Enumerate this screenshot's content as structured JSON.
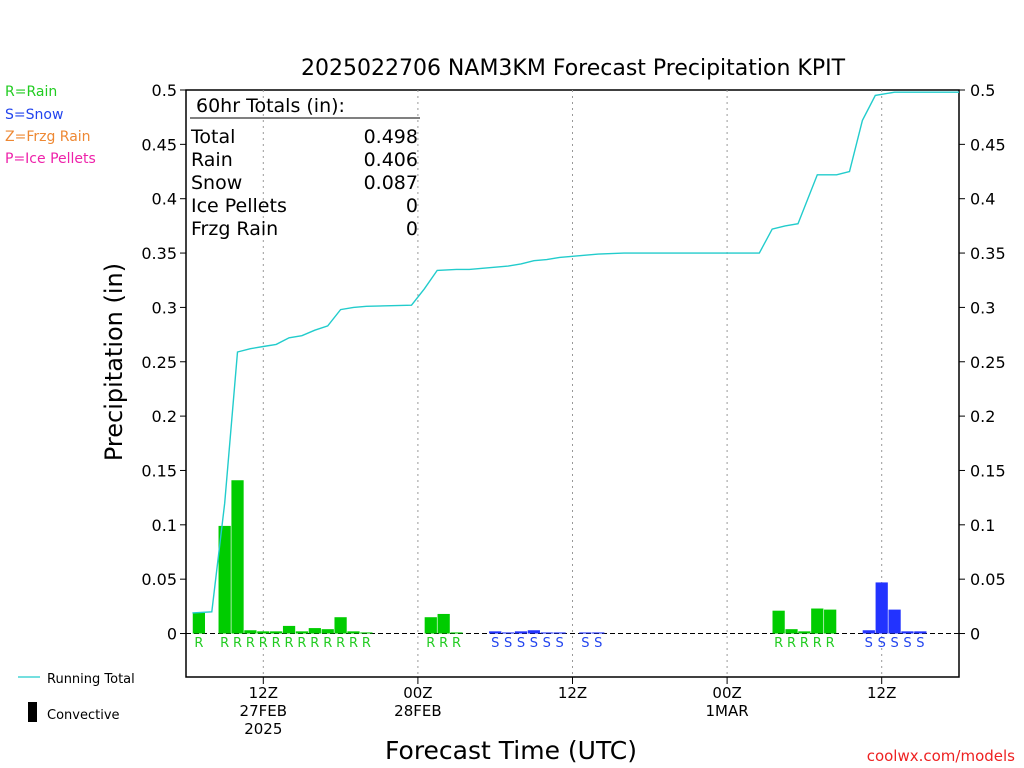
{
  "legend_types": [
    {
      "label": "R=Rain",
      "color": "#22cc22"
    },
    {
      "label": "S=Snow",
      "color": "#2244ee"
    },
    {
      "label": "Z=Frzg Rain",
      "color": "#ee8833"
    },
    {
      "label": "P=Ice Pellets",
      "color": "#ee22aa"
    }
  ],
  "legend_bottom": {
    "running_total": "Running Total",
    "convective": "Convective",
    "running_total_color": "#22cccc"
  },
  "totals_box": {
    "title": "60hr Totals (in):",
    "rows": [
      {
        "label": "Total",
        "value": "0.498"
      },
      {
        "label": "Rain",
        "value": "0.406"
      },
      {
        "label": "Snow",
        "value": "0.087"
      },
      {
        "label": "Ice Pellets",
        "value": "0"
      },
      {
        "label": "Frzg Rain",
        "value": "0"
      }
    ]
  },
  "credit": "coolwx.com/models",
  "chart_data": {
    "type": "bar",
    "title": "2025022706 NAM3KM Forecast Precipitation KPIT",
    "xlabel": "Forecast Time (UTC)",
    "ylabel": "Precipitation (in)",
    "ylim": [
      -0.04,
      0.5
    ],
    "yticks": [
      "0",
      "0.05",
      "0.1",
      "0.15",
      "0.2",
      "0.25",
      "0.3",
      "0.35",
      "0.4",
      "0.45",
      "0.5"
    ],
    "ytick_values": [
      0,
      0.05,
      0.1,
      0.15,
      0.2,
      0.25,
      0.3,
      0.35,
      0.4,
      0.45,
      0.5
    ],
    "x_range_hours": [
      0,
      60
    ],
    "x_major_ticks": [
      {
        "hour": 6,
        "lines": [
          "12Z",
          "27FEB",
          "2025"
        ]
      },
      {
        "hour": 18,
        "lines": [
          "00Z",
          "28FEB"
        ]
      },
      {
        "hour": 30,
        "lines": [
          "12Z"
        ]
      },
      {
        "hour": 42,
        "lines": [
          "00Z",
          "1MAR"
        ]
      },
      {
        "hour": 54,
        "lines": [
          "12Z"
        ]
      }
    ],
    "bars": [
      {
        "hour": 1,
        "value": 0.019,
        "type": "R"
      },
      {
        "hour": 3,
        "value": 0.099,
        "type": "R"
      },
      {
        "hour": 4,
        "value": 0.141,
        "type": "R"
      },
      {
        "hour": 5,
        "value": 0.003,
        "type": "R"
      },
      {
        "hour": 6,
        "value": 0.002,
        "type": "R"
      },
      {
        "hour": 7,
        "value": 0.002,
        "type": "R"
      },
      {
        "hour": 8,
        "value": 0.007,
        "type": "R"
      },
      {
        "hour": 9,
        "value": 0.002,
        "type": "R"
      },
      {
        "hour": 10,
        "value": 0.005,
        "type": "R"
      },
      {
        "hour": 11,
        "value": 0.004,
        "type": "R"
      },
      {
        "hour": 12,
        "value": 0.015,
        "type": "R"
      },
      {
        "hour": 13,
        "value": 0.002,
        "type": "R"
      },
      {
        "hour": 14,
        "value": 0.001,
        "type": "R"
      },
      {
        "hour": 19,
        "value": 0.015,
        "type": "R"
      },
      {
        "hour": 20,
        "value": 0.018,
        "type": "R"
      },
      {
        "hour": 21,
        "value": 0.001,
        "type": "R"
      },
      {
        "hour": 24,
        "value": 0.002,
        "type": "S"
      },
      {
        "hour": 25,
        "value": 0.001,
        "type": "S"
      },
      {
        "hour": 26,
        "value": 0.002,
        "type": "S"
      },
      {
        "hour": 27,
        "value": 0.003,
        "type": "S"
      },
      {
        "hour": 28,
        "value": 0.001,
        "type": "S"
      },
      {
        "hour": 29,
        "value": 0.001,
        "type": "S"
      },
      {
        "hour": 31,
        "value": 0.001,
        "type": "S"
      },
      {
        "hour": 32,
        "value": 0.001,
        "type": "S"
      },
      {
        "hour": 46,
        "value": 0.021,
        "type": "R"
      },
      {
        "hour": 47,
        "value": 0.004,
        "type": "R"
      },
      {
        "hour": 48,
        "value": 0.002,
        "type": "R"
      },
      {
        "hour": 49,
        "value": 0.023,
        "type": "R"
      },
      {
        "hour": 50,
        "value": 0.022,
        "type": "R"
      },
      {
        "hour": 53,
        "value": 0.003,
        "type": "S"
      },
      {
        "hour": 54,
        "value": 0.047,
        "type": "S"
      },
      {
        "hour": 55,
        "value": 0.022,
        "type": "S"
      },
      {
        "hour": 56,
        "value": 0.002,
        "type": "S"
      },
      {
        "hour": 57,
        "value": 0.002,
        "type": "S"
      }
    ],
    "type_labels": [
      {
        "hour": 1,
        "type": "R"
      },
      {
        "hour": 3,
        "type": "R"
      },
      {
        "hour": 4,
        "type": "R"
      },
      {
        "hour": 5,
        "type": "R"
      },
      {
        "hour": 6,
        "type": "R"
      },
      {
        "hour": 7,
        "type": "R"
      },
      {
        "hour": 8,
        "type": "R"
      },
      {
        "hour": 9,
        "type": "R"
      },
      {
        "hour": 10,
        "type": "R"
      },
      {
        "hour": 11,
        "type": "R"
      },
      {
        "hour": 12,
        "type": "R"
      },
      {
        "hour": 13,
        "type": "R"
      },
      {
        "hour": 14,
        "type": "R"
      },
      {
        "hour": 19,
        "type": "R"
      },
      {
        "hour": 20,
        "type": "R"
      },
      {
        "hour": 21,
        "type": "R"
      },
      {
        "hour": 24,
        "type": "S"
      },
      {
        "hour": 25,
        "type": "S"
      },
      {
        "hour": 26,
        "type": "S"
      },
      {
        "hour": 27,
        "type": "S"
      },
      {
        "hour": 28,
        "type": "S"
      },
      {
        "hour": 29,
        "type": "S"
      },
      {
        "hour": 31,
        "type": "S"
      },
      {
        "hour": 32,
        "type": "S"
      },
      {
        "hour": 46,
        "type": "R"
      },
      {
        "hour": 47,
        "type": "R"
      },
      {
        "hour": 48,
        "type": "R"
      },
      {
        "hour": 49,
        "type": "R"
      },
      {
        "hour": 50,
        "type": "R"
      },
      {
        "hour": 53,
        "type": "S"
      },
      {
        "hour": 54,
        "type": "S"
      },
      {
        "hour": 55,
        "type": "S"
      },
      {
        "hour": 56,
        "type": "S"
      },
      {
        "hour": 57,
        "type": "S"
      }
    ],
    "running_total": {
      "name": "Running Total",
      "points": [
        [
          0.5,
          0.019
        ],
        [
          2,
          0.02
        ],
        [
          3,
          0.12
        ],
        [
          4,
          0.259
        ],
        [
          5,
          0.262
        ],
        [
          6,
          0.264
        ],
        [
          7,
          0.266
        ],
        [
          8,
          0.272
        ],
        [
          9,
          0.274
        ],
        [
          10,
          0.279
        ],
        [
          11,
          0.283
        ],
        [
          12,
          0.298
        ],
        [
          13,
          0.3
        ],
        [
          14,
          0.301
        ],
        [
          17.5,
          0.302
        ],
        [
          18.5,
          0.317
        ],
        [
          19.5,
          0.334
        ],
        [
          21,
          0.335
        ],
        [
          22,
          0.335
        ],
        [
          23,
          0.336
        ],
        [
          24,
          0.337
        ],
        [
          25,
          0.338
        ],
        [
          26,
          0.34
        ],
        [
          27,
          0.343
        ],
        [
          28,
          0.344
        ],
        [
          29,
          0.346
        ],
        [
          30,
          0.347
        ],
        [
          31,
          0.348
        ],
        [
          32,
          0.349
        ],
        [
          34,
          0.35
        ],
        [
          42,
          0.35
        ],
        [
          44.5,
          0.35
        ],
        [
          45.5,
          0.372
        ],
        [
          46.5,
          0.375
        ],
        [
          47.5,
          0.377
        ],
        [
          49,
          0.422
        ],
        [
          50.5,
          0.422
        ],
        [
          51.5,
          0.425
        ],
        [
          52.5,
          0.472
        ],
        [
          53.5,
          0.495
        ],
        [
          55,
          0.498
        ],
        [
          60,
          0.498
        ]
      ]
    },
    "colors": {
      "R": "#00cc00",
      "S": "#2233ff",
      "R_label": "#22cc22",
      "S_label": "#2244ee"
    }
  }
}
